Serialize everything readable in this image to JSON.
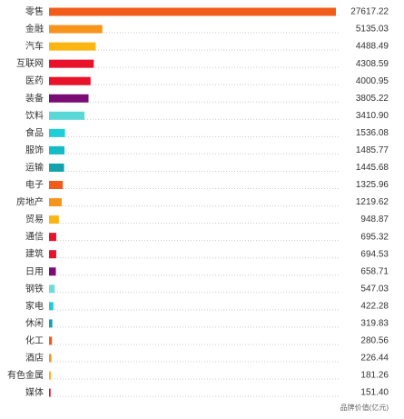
{
  "chart_data": {
    "type": "bar",
    "x_label": "品牌价值(亿元)",
    "categories": [
      "零售",
      "金融",
      "汽车",
      "互联网",
      "医药",
      "装备",
      "饮料",
      "食品",
      "服饰",
      "运输",
      "电子",
      "房地产",
      "贸易",
      "通信",
      "建筑",
      "日用",
      "钢铁",
      "家电",
      "休闲",
      "化工",
      "酒店",
      "有色金属",
      "媒体"
    ],
    "values": [
      27617.22,
      5135.03,
      4488.49,
      4308.59,
      4000.95,
      3805.22,
      3410.9,
      1536.08,
      1485.77,
      1445.68,
      1325.96,
      1219.62,
      948.87,
      695.32,
      694.53,
      658.71,
      547.03,
      422.28,
      319.83,
      280.56,
      226.44,
      181.26,
      151.4
    ],
    "value_labels": [
      "27617.22",
      "5135.03",
      "4488.49",
      "4308.59",
      "4000.95",
      "3805.22",
      "3410.90",
      "1536.08",
      "1485.77",
      "1445.68",
      "1325.96",
      "1219.62",
      "948.87",
      "695.32",
      "694.53",
      "658.71",
      "547.03",
      "422.28",
      "319.83",
      "280.56",
      "226.44",
      "181.26",
      "151.40"
    ],
    "colors": [
      "#f25c1b",
      "#f7941d",
      "#fbb614",
      "#e8132a",
      "#e8132a",
      "#7b0c75",
      "#5ad8d8",
      "#1fcfd6",
      "#14bcc8",
      "#12a3ad",
      "#f25c1b",
      "#f7941d",
      "#fbb614",
      "#e8132a",
      "#e8132a",
      "#7b0c75",
      "#6fdcdc",
      "#1fcfd6",
      "#12a3ad",
      "#f25c1b",
      "#f7941d",
      "#fbb614",
      "#e8132a"
    ]
  }
}
